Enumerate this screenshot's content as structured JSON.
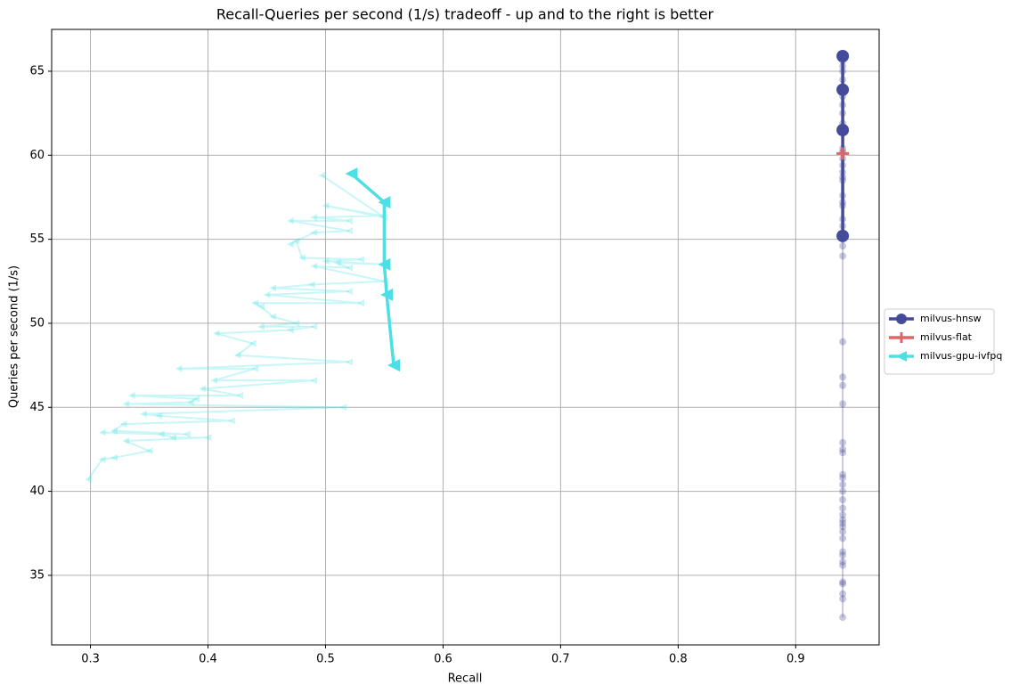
{
  "chart_data": {
    "type": "scatter",
    "title": "Recall-Queries per second (1/s) tradeoff - up and to the right is better",
    "x_label": "Recall",
    "y_label": "Queries per second (1/s)",
    "xlim": [
      0.267,
      0.971
    ],
    "ylim": [
      30.86,
      67.49
    ],
    "xticks": [
      0.3,
      0.4,
      0.5,
      0.6,
      0.7,
      0.8,
      0.9
    ],
    "yticks": [
      35,
      40,
      45,
      50,
      55,
      60,
      65
    ],
    "grid": true,
    "legend": "right-outside",
    "series": [
      {
        "name": "milvus-hnsw",
        "color": "#444b9b",
        "marker": "circle",
        "x": [
          0.94,
          0.94,
          0.94,
          0.94
        ],
        "values": [
          65.9,
          63.9,
          61.5,
          55.2
        ],
        "faded_x": [
          0.94,
          0.94,
          0.94,
          0.94,
          0.94,
          0.94,
          0.94,
          0.94,
          0.94,
          0.94,
          0.94,
          0.94,
          0.94,
          0.94,
          0.94,
          0.94,
          0.94,
          0.94,
          0.94,
          0.94,
          0.94,
          0.94,
          0.94,
          0.94,
          0.94,
          0.94,
          0.94,
          0.94,
          0.94,
          0.94,
          0.94,
          0.94,
          0.94,
          0.94,
          0.94,
          0.94,
          0.94,
          0.94,
          0.94,
          0.94,
          0.94,
          0.94,
          0.94,
          0.94,
          0.94,
          0.94,
          0.94,
          0.94,
          0.94,
          0.94,
          0.94,
          0.94
        ],
        "faded_values": [
          65.6,
          65.3,
          65.0,
          64.5,
          63.5,
          63.0,
          62.5,
          61.9,
          61.6,
          60.4,
          60.2,
          59.8,
          59.4,
          59.0,
          58.7,
          58.5,
          57.6,
          57.2,
          57.0,
          56.2,
          55.8,
          55.0,
          54.6,
          54.0,
          48.9,
          46.8,
          46.3,
          45.2,
          42.9,
          42.5,
          42.3,
          41.0,
          40.8,
          40.4,
          40.0,
          39.5,
          39.0,
          38.6,
          38.3,
          38.1,
          37.9,
          37.6,
          37.2,
          36.4,
          36.2,
          35.8,
          35.6,
          34.6,
          34.5,
          33.9,
          33.6,
          32.5
        ]
      },
      {
        "name": "milvus-flat",
        "color": "#e06666",
        "marker": "plus",
        "x": [
          0.94
        ],
        "values": [
          60.1
        ],
        "faded_x": [
          0.94
        ],
        "faded_values": [
          60.2
        ]
      },
      {
        "name": "milvus-gpu-ivfpq",
        "color": "#4ce0e6",
        "marker": "triangle-left",
        "x": [
          0.522,
          0.55,
          0.55,
          0.552,
          0.558
        ],
        "values": [
          58.9,
          57.2,
          53.5,
          51.7,
          47.5
        ],
        "faded_x": [
          0.497,
          0.55,
          0.5,
          0.548,
          0.49,
          0.52,
          0.47,
          0.52,
          0.49,
          0.47,
          0.475,
          0.48,
          0.53,
          0.5,
          0.55,
          0.51,
          0.52,
          0.49,
          0.55,
          0.488,
          0.455,
          0.52,
          0.45,
          0.53,
          0.44,
          0.445,
          0.455,
          0.475,
          0.445,
          0.49,
          0.47,
          0.407,
          0.438,
          0.425,
          0.52,
          0.375,
          0.44,
          0.405,
          0.49,
          0.395,
          0.427,
          0.335,
          0.39,
          0.385,
          0.33,
          0.515,
          0.345,
          0.358,
          0.42,
          0.328,
          0.32,
          0.382,
          0.31,
          0.36,
          0.37,
          0.4,
          0.33,
          0.35,
          0.32,
          0.31,
          0.298
        ],
        "faded_values": [
          58.8,
          56.3,
          57.0,
          56.4,
          56.3,
          56.1,
          56.1,
          55.5,
          55.4,
          54.7,
          54.9,
          53.9,
          53.8,
          53.7,
          53.5,
          53.6,
          53.3,
          53.4,
          52.5,
          52.3,
          52.1,
          51.9,
          51.7,
          51.2,
          51.2,
          51.0,
          50.4,
          50.0,
          49.8,
          49.8,
          49.6,
          49.4,
          48.8,
          48.1,
          47.7,
          47.3,
          47.3,
          46.6,
          46.6,
          46.1,
          45.7,
          45.7,
          45.5,
          45.3,
          45.2,
          45.0,
          44.6,
          44.5,
          44.2,
          44.0,
          43.6,
          43.4,
          43.5,
          43.4,
          43.2,
          43.2,
          43.0,
          42.4,
          42.0,
          41.9,
          40.7
        ]
      }
    ]
  }
}
